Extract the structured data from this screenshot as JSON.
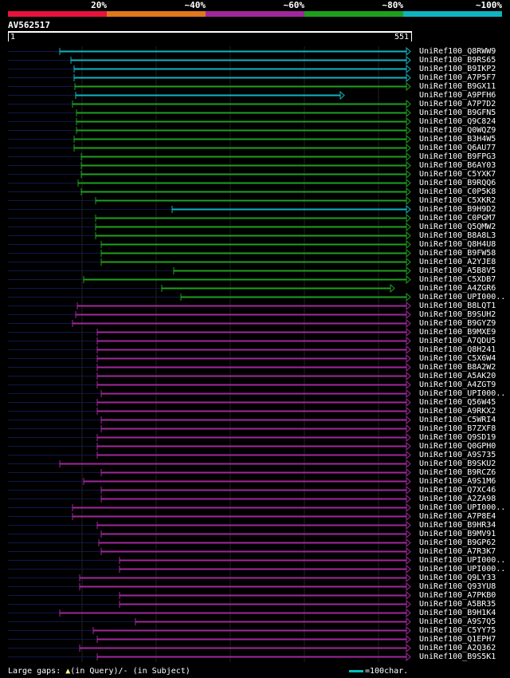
{
  "legend": {
    "labels": [
      "20%",
      "~40%",
      "~60%",
      "~80%",
      "~100%"
    ],
    "colors": [
      "#e6143c",
      "#e0781e",
      "#a0289c",
      "#1ea01e",
      "#10b4c0"
    ]
  },
  "query": {
    "id": "AV562517",
    "start": "1",
    "end": "551",
    "length": 551
  },
  "footer": {
    "gaps_prefix": "Large gaps: ",
    "gaps_query": "(in Query)/",
    "gaps_sep": "- ",
    "gaps_subject": "(in Subject)",
    "scale": "=100char."
  },
  "hits": [
    {
      "name": "UniRef100_Q8RWW9",
      "color": "#10b4c0",
      "start": 75,
      "end": 515
    },
    {
      "name": "UniRef100_B9RS65",
      "color": "#10b4c0",
      "start": 89,
      "end": 515
    },
    {
      "name": "UniRef100_B9IKP2",
      "color": "#10b4c0",
      "start": 93,
      "end": 515
    },
    {
      "name": "UniRef100_A7P5F7",
      "color": "#10b4c0",
      "start": 93,
      "end": 515
    },
    {
      "name": "UniRef100_B9GX11",
      "color": "#1ea01e",
      "start": 94,
      "end": 515
    },
    {
      "name": "UniRef100_A9PFH6",
      "color": "#10b4c0",
      "start": 95,
      "end": 432
    },
    {
      "name": "UniRef100_A7P7D2",
      "color": "#1ea01e",
      "start": 91,
      "end": 515
    },
    {
      "name": "UniRef100_B9GFN5",
      "color": "#1ea01e",
      "start": 96,
      "end": 515
    },
    {
      "name": "UniRef100_Q9C824",
      "color": "#1ea01e",
      "start": 96,
      "end": 515
    },
    {
      "name": "UniRef100_Q0WQZ9",
      "color": "#1ea01e",
      "start": 96,
      "end": 515
    },
    {
      "name": "UniRef100_B3H4W5",
      "color": "#1ea01e",
      "start": 93,
      "end": 515
    },
    {
      "name": "UniRef100_Q6AU77",
      "color": "#1ea01e",
      "start": 93,
      "end": 515
    },
    {
      "name": "UniRef100_B9FPG3",
      "color": "#1ea01e",
      "start": 102,
      "end": 515
    },
    {
      "name": "UniRef100_B6AY03",
      "color": "#1ea01e",
      "start": 102,
      "end": 515
    },
    {
      "name": "UniRef100_C5YXK7",
      "color": "#1ea01e",
      "start": 102,
      "end": 515
    },
    {
      "name": "UniRef100_B9RQQ6",
      "color": "#1ea01e",
      "start": 98,
      "end": 515
    },
    {
      "name": "UniRef100_C0P5K8",
      "color": "#1ea01e",
      "start": 102,
      "end": 515
    },
    {
      "name": "UniRef100_C5XKR2",
      "color": "#1ea01e",
      "start": 120,
      "end": 515
    },
    {
      "name": "UniRef100_B9H9D2",
      "color": "#10b4c0",
      "start": 216,
      "end": 515
    },
    {
      "name": "UniRef100_C0PGM7",
      "color": "#1ea01e",
      "start": 120,
      "end": 515
    },
    {
      "name": "UniRef100_Q5QMW2",
      "color": "#1ea01e",
      "start": 120,
      "end": 515
    },
    {
      "name": "UniRef100_B8A8L3",
      "color": "#1ea01e",
      "start": 120,
      "end": 515
    },
    {
      "name": "UniRef100_Q8H4U8",
      "color": "#1ea01e",
      "start": 127,
      "end": 515
    },
    {
      "name": "UniRef100_B9FW58",
      "color": "#1ea01e",
      "start": 127,
      "end": 515
    },
    {
      "name": "UniRef100_A2YJE8",
      "color": "#1ea01e",
      "start": 127,
      "end": 515
    },
    {
      "name": "UniRef100_A5B8V5",
      "color": "#1ea01e",
      "start": 218,
      "end": 515
    },
    {
      "name": "UniRef100_C5XDB7",
      "color": "#1ea01e",
      "start": 105,
      "end": 515
    },
    {
      "name": "UniRef100_A4ZGR6",
      "color": "#1ea01e",
      "start": 203,
      "end": 495
    },
    {
      "name": "UniRef100_UPI000..",
      "color": "#1ea01e",
      "start": 227,
      "end": 515
    },
    {
      "name": "UniRef100_B8LQT1",
      "color": "#a0289c",
      "start": 97,
      "end": 515
    },
    {
      "name": "UniRef100_B9SUH2",
      "color": "#a0289c",
      "start": 95,
      "end": 515
    },
    {
      "name": "UniRef100_B9GYZ9",
      "color": "#a0289c",
      "start": 91,
      "end": 515
    },
    {
      "name": "UniRef100_B9MXE9",
      "color": "#a0289c",
      "start": 122,
      "end": 515
    },
    {
      "name": "UniRef100_A7QDU5",
      "color": "#a0289c",
      "start": 122,
      "end": 515
    },
    {
      "name": "UniRef100_Q8H241",
      "color": "#a0289c",
      "start": 122,
      "end": 515
    },
    {
      "name": "UniRef100_C5X6W4",
      "color": "#a0289c",
      "start": 122,
      "end": 515
    },
    {
      "name": "UniRef100_B8A2W2",
      "color": "#a0289c",
      "start": 122,
      "end": 515
    },
    {
      "name": "UniRef100_A5AK20",
      "color": "#a0289c",
      "start": 122,
      "end": 515
    },
    {
      "name": "UniRef100_A4ZGT9",
      "color": "#a0289c",
      "start": 122,
      "end": 515
    },
    {
      "name": "UniRef100_UPI000..",
      "color": "#a0289c",
      "start": 127,
      "end": 515
    },
    {
      "name": "UniRef100_Q56W45",
      "color": "#a0289c",
      "start": 122,
      "end": 515
    },
    {
      "name": "UniRef100_A9RKX2",
      "color": "#a0289c",
      "start": 122,
      "end": 515
    },
    {
      "name": "UniRef100_C5WRI4",
      "color": "#a0289c",
      "start": 127,
      "end": 515
    },
    {
      "name": "UniRef100_B7ZXF8",
      "color": "#a0289c",
      "start": 127,
      "end": 515
    },
    {
      "name": "UniRef100_Q9SD19",
      "color": "#a0289c",
      "start": 122,
      "end": 515
    },
    {
      "name": "UniRef100_Q0GPH0",
      "color": "#a0289c",
      "start": 122,
      "end": 515
    },
    {
      "name": "UniRef100_A9S735",
      "color": "#a0289c",
      "start": 122,
      "end": 515
    },
    {
      "name": "UniRef100_B9SKU2",
      "color": "#a0289c",
      "start": 75,
      "end": 515
    },
    {
      "name": "UniRef100_B9RCZ6",
      "color": "#a0289c",
      "start": 127,
      "end": 515
    },
    {
      "name": "UniRef100_A9S1M6",
      "color": "#a0289c",
      "start": 105,
      "end": 515
    },
    {
      "name": "UniRef100_Q7XC46",
      "color": "#a0289c",
      "start": 127,
      "end": 515
    },
    {
      "name": "UniRef100_A2ZA98",
      "color": "#a0289c",
      "start": 127,
      "end": 515
    },
    {
      "name": "UniRef100_UPI000..",
      "color": "#a0289c",
      "start": 91,
      "end": 515
    },
    {
      "name": "UniRef100_A7P8E4",
      "color": "#a0289c",
      "start": 91,
      "end": 515
    },
    {
      "name": "UniRef100_B9HR34",
      "color": "#a0289c",
      "start": 122,
      "end": 515
    },
    {
      "name": "UniRef100_B9MV91",
      "color": "#a0289c",
      "start": 127,
      "end": 515
    },
    {
      "name": "UniRef100_B9GP62",
      "color": "#a0289c",
      "start": 124,
      "end": 515
    },
    {
      "name": "UniRef100_A7R3K7",
      "color": "#a0289c",
      "start": 127,
      "end": 515
    },
    {
      "name": "UniRef100_UPI000..",
      "color": "#a0289c",
      "start": 150,
      "end": 515
    },
    {
      "name": "UniRef100_UPI000..",
      "color": "#a0289c",
      "start": 150,
      "end": 515
    },
    {
      "name": "UniRef100_Q9LY33",
      "color": "#a0289c",
      "start": 100,
      "end": 515
    },
    {
      "name": "UniRef100_Q93YU8",
      "color": "#a0289c",
      "start": 100,
      "end": 515
    },
    {
      "name": "UniRef100_A7PKB0",
      "color": "#a0289c",
      "start": 150,
      "end": 515
    },
    {
      "name": "UniRef100_A5BR35",
      "color": "#a0289c",
      "start": 150,
      "end": 515
    },
    {
      "name": "UniRef100_B9H1K4",
      "color": "#a0289c",
      "start": 75,
      "end": 515
    },
    {
      "name": "UniRef100_A9S7Q5",
      "color": "#a0289c",
      "start": 170,
      "end": 515
    },
    {
      "name": "UniRef100_C5YY75",
      "color": "#a0289c",
      "start": 117,
      "end": 515
    },
    {
      "name": "UniRef100_Q1EPH7",
      "color": "#a0289c",
      "start": 122,
      "end": 515
    },
    {
      "name": "UniRef100_A2Q362",
      "color": "#a0289c",
      "start": 100,
      "end": 515
    },
    {
      "name": "UniRef100_B9S5K1",
      "color": "#a0289c",
      "start": 122,
      "end": 515
    }
  ]
}
